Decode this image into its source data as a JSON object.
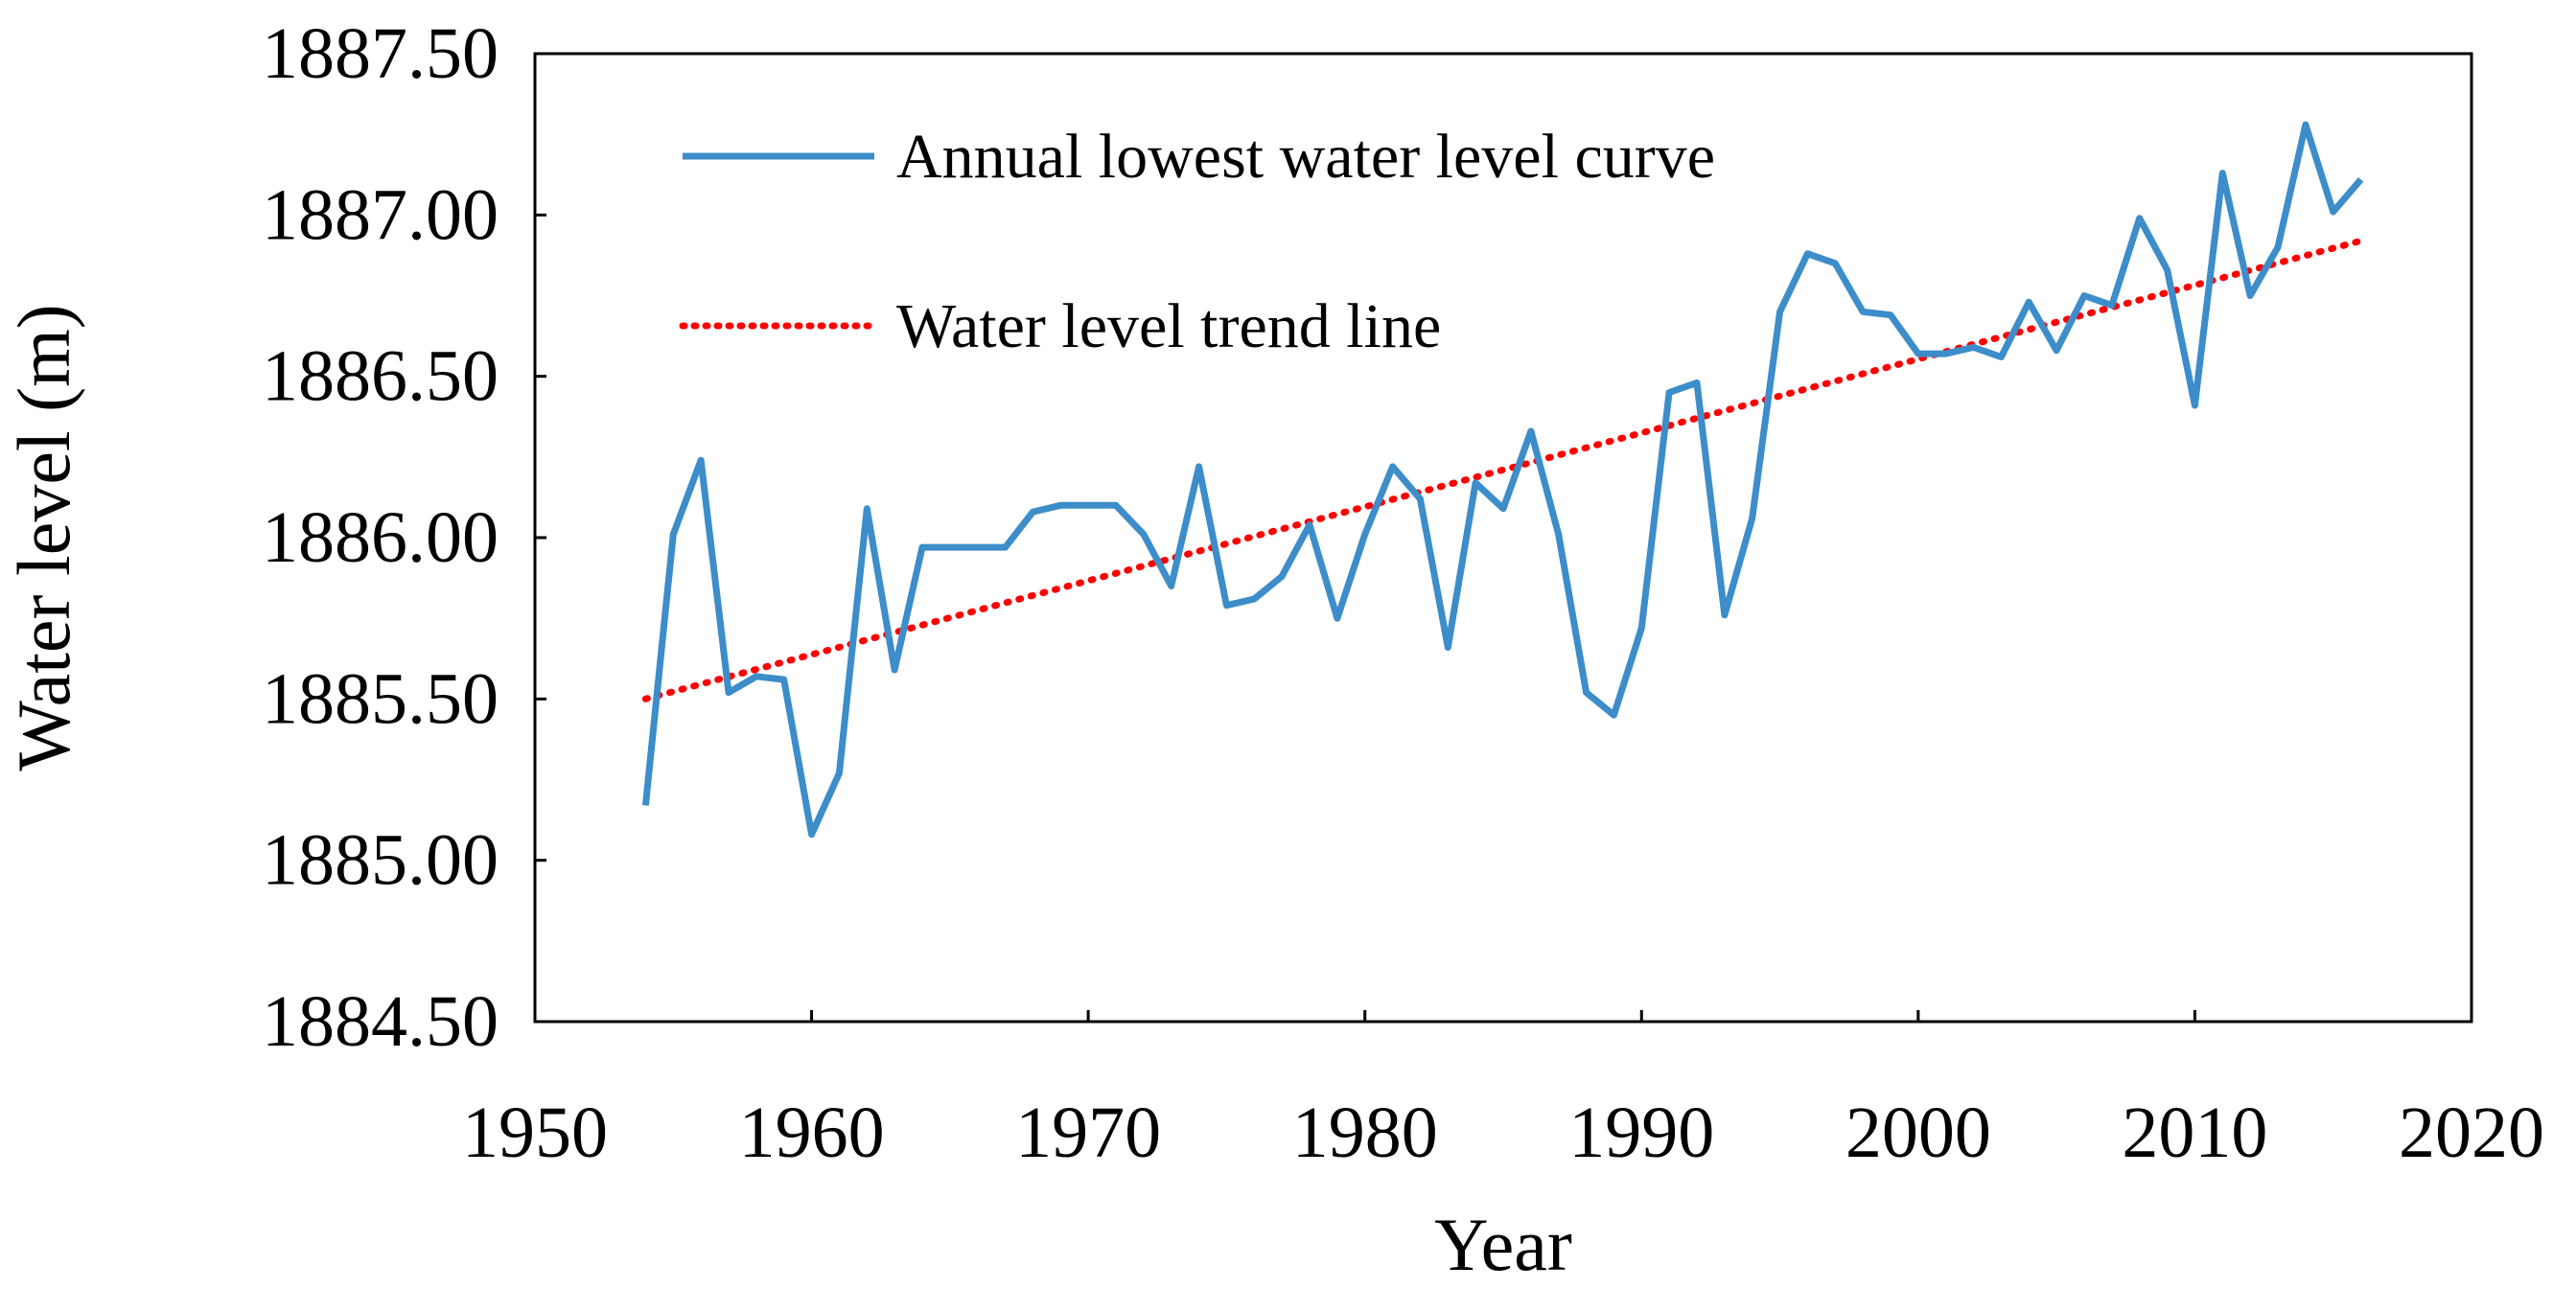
{
  "chart_data": {
    "type": "line",
    "title": "",
    "xlabel": "Year",
    "ylabel": "Water level (m)",
    "xlim": [
      1950,
      2020
    ],
    "ylim": [
      1884.5,
      1887.5
    ],
    "x_ticks": [
      1950,
      1960,
      1970,
      1980,
      1990,
      2000,
      2010,
      2020
    ],
    "x_tick_labels": [
      "1950",
      "1960",
      "1970",
      "1980",
      "1990",
      "2000",
      "2010",
      "2020"
    ],
    "y_ticks": [
      1884.5,
      1885.0,
      1885.5,
      1886.0,
      1886.5,
      1887.0,
      1887.5
    ],
    "y_tick_labels": [
      "1884.50",
      "1885.00",
      "1885.50",
      "1886.00",
      "1886.50",
      "1887.00",
      "1887.50"
    ],
    "grid": false,
    "legend_position": "top-left",
    "series": [
      {
        "name": "Annual lowest water level curve",
        "style": "solid",
        "color": "#3c8dc9",
        "x": [
          1954,
          1955,
          1956,
          1957,
          1958,
          1959,
          1960,
          1961,
          1962,
          1963,
          1964,
          1965,
          1966,
          1967,
          1968,
          1969,
          1970,
          1971,
          1972,
          1973,
          1974,
          1975,
          1976,
          1977,
          1978,
          1979,
          1980,
          1981,
          1982,
          1983,
          1984,
          1985,
          1986,
          1987,
          1988,
          1989,
          1990,
          1991,
          1992,
          1993,
          1994,
          1995,
          1996,
          1997,
          1998,
          1999,
          2000,
          2001,
          2002,
          2003,
          2004,
          2005,
          2006,
          2007,
          2008,
          2009,
          2010,
          2011,
          2012,
          2013,
          2014,
          2015,
          2016
        ],
        "values": [
          1885.17,
          1886.01,
          1886.24,
          1885.52,
          1885.57,
          1885.56,
          1885.08,
          1885.27,
          1886.09,
          1885.59,
          1885.97,
          1885.97,
          1885.97,
          1885.97,
          1886.08,
          1886.1,
          1886.1,
          1886.1,
          1886.01,
          1885.85,
          1886.22,
          1885.79,
          1885.81,
          1885.88,
          1886.04,
          1885.75,
          1886.01,
          1886.22,
          1886.12,
          1885.66,
          1886.17,
          1886.09,
          1886.33,
          1886.01,
          1885.52,
          1885.45,
          1885.72,
          1886.45,
          1886.48,
          1885.76,
          1886.06,
          1886.7,
          1886.88,
          1886.85,
          1886.7,
          1886.69,
          1886.57,
          1886.57,
          1886.59,
          1886.56,
          1886.73,
          1886.58,
          1886.75,
          1886.72,
          1886.99,
          1886.83,
          1886.41,
          1887.13,
          1886.75,
          1886.9,
          1887.28,
          1887.01,
          1887.11
        ]
      },
      {
        "name": "Water level trend line",
        "style": "dotted",
        "color": "#ff0000",
        "x": [
          1954,
          2016
        ],
        "values": [
          1885.5,
          1886.92
        ]
      }
    ]
  }
}
